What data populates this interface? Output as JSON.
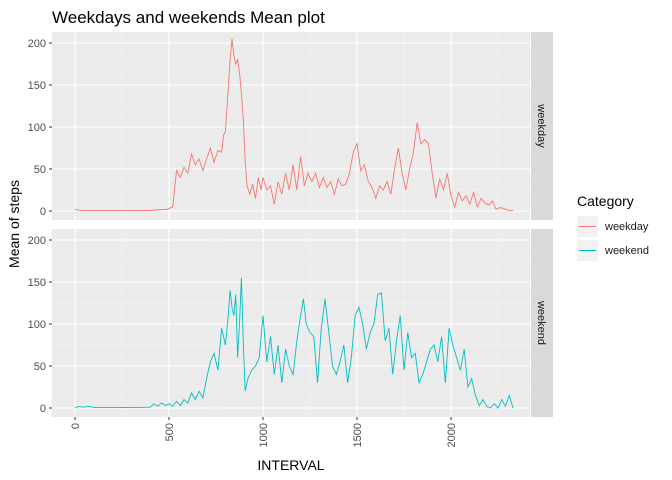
{
  "chart_data": {
    "type": "line",
    "title": "Weekdays and weekends Mean plot",
    "xlabel": "INTERVAL",
    "ylabel": "Mean of steps",
    "xlim": [
      0,
      2355
    ],
    "ylim": [
      0,
      210
    ],
    "x_ticks": [
      0,
      500,
      1000,
      1500,
      2000
    ],
    "x_tick_labels": [
      "0",
      "500",
      "1000",
      "1500",
      "2000"
    ],
    "y_ticks": [
      0,
      50,
      100,
      150,
      200
    ],
    "y_tick_labels": [
      "0",
      "50",
      "100",
      "150",
      "200"
    ],
    "grid": true,
    "facets": [
      "weekday",
      "weekend"
    ],
    "legend": {
      "title": "Category",
      "position": "right"
    },
    "series": [
      {
        "name": "weekday",
        "color": "#F8766D",
        "points": [
          [
            0,
            2
          ],
          [
            30,
            0.5
          ],
          [
            100,
            0.5
          ],
          [
            200,
            0.5
          ],
          [
            300,
            0.5
          ],
          [
            400,
            0.5
          ],
          [
            450,
            1.5
          ],
          [
            490,
            2
          ],
          [
            520,
            5
          ],
          [
            540,
            48
          ],
          [
            560,
            40
          ],
          [
            580,
            52
          ],
          [
            600,
            45
          ],
          [
            620,
            68
          ],
          [
            640,
            55
          ],
          [
            660,
            62
          ],
          [
            680,
            48
          ],
          [
            700,
            62
          ],
          [
            720,
            75
          ],
          [
            740,
            58
          ],
          [
            760,
            72
          ],
          [
            780,
            70
          ],
          [
            790,
            90
          ],
          [
            800,
            95
          ],
          [
            815,
            145
          ],
          [
            825,
            180
          ],
          [
            835,
            205
          ],
          [
            845,
            185
          ],
          [
            855,
            175
          ],
          [
            865,
            180
          ],
          [
            875,
            165
          ],
          [
            885,
            140
          ],
          [
            895,
            110
          ],
          [
            905,
            60
          ],
          [
            915,
            30
          ],
          [
            930,
            20
          ],
          [
            945,
            32
          ],
          [
            960,
            15
          ],
          [
            975,
            40
          ],
          [
            990,
            25
          ],
          [
            1000,
            40
          ],
          [
            1020,
            25
          ],
          [
            1040,
            30
          ],
          [
            1060,
            8
          ],
          [
            1080,
            35
          ],
          [
            1100,
            20
          ],
          [
            1120,
            45
          ],
          [
            1140,
            25
          ],
          [
            1160,
            55
          ],
          [
            1180,
            25
          ],
          [
            1200,
            65
          ],
          [
            1220,
            30
          ],
          [
            1240,
            45
          ],
          [
            1260,
            35
          ],
          [
            1280,
            45
          ],
          [
            1300,
            28
          ],
          [
            1320,
            40
          ],
          [
            1340,
            28
          ],
          [
            1360,
            35
          ],
          [
            1380,
            20
          ],
          [
            1400,
            38
          ],
          [
            1420,
            30
          ],
          [
            1440,
            32
          ],
          [
            1460,
            45
          ],
          [
            1480,
            70
          ],
          [
            1500,
            80
          ],
          [
            1520,
            48
          ],
          [
            1540,
            55
          ],
          [
            1560,
            35
          ],
          [
            1580,
            28
          ],
          [
            1600,
            15
          ],
          [
            1620,
            30
          ],
          [
            1640,
            25
          ],
          [
            1660,
            35
          ],
          [
            1680,
            20
          ],
          [
            1700,
            50
          ],
          [
            1720,
            75
          ],
          [
            1740,
            45
          ],
          [
            1760,
            25
          ],
          [
            1780,
            50
          ],
          [
            1800,
            70
          ],
          [
            1820,
            105
          ],
          [
            1840,
            80
          ],
          [
            1860,
            85
          ],
          [
            1880,
            80
          ],
          [
            1900,
            45
          ],
          [
            1920,
            15
          ],
          [
            1940,
            38
          ],
          [
            1960,
            25
          ],
          [
            1980,
            45
          ],
          [
            2000,
            18
          ],
          [
            2020,
            5
          ],
          [
            2040,
            22
          ],
          [
            2060,
            12
          ],
          [
            2080,
            18
          ],
          [
            2100,
            8
          ],
          [
            2120,
            22
          ],
          [
            2140,
            5
          ],
          [
            2160,
            15
          ],
          [
            2180,
            10
          ],
          [
            2200,
            7
          ],
          [
            2220,
            12
          ],
          [
            2240,
            2
          ],
          [
            2260,
            4
          ],
          [
            2280,
            3
          ],
          [
            2300,
            1
          ],
          [
            2330,
            0.5
          ]
        ]
      },
      {
        "name": "weekend",
        "color": "#00BFC4",
        "points": [
          [
            0,
            0
          ],
          [
            20,
            2
          ],
          [
            40,
            1
          ],
          [
            80,
            2
          ],
          [
            100,
            0.5
          ],
          [
            200,
            0.5
          ],
          [
            300,
            0.5
          ],
          [
            400,
            1
          ],
          [
            420,
            5
          ],
          [
            440,
            2
          ],
          [
            460,
            6
          ],
          [
            480,
            3
          ],
          [
            500,
            5
          ],
          [
            520,
            2
          ],
          [
            540,
            8
          ],
          [
            560,
            3
          ],
          [
            580,
            10
          ],
          [
            600,
            6
          ],
          [
            620,
            18
          ],
          [
            640,
            10
          ],
          [
            660,
            20
          ],
          [
            680,
            12
          ],
          [
            700,
            35
          ],
          [
            720,
            55
          ],
          [
            740,
            65
          ],
          [
            760,
            45
          ],
          [
            780,
            95
          ],
          [
            800,
            75
          ],
          [
            815,
            110
          ],
          [
            825,
            140
          ],
          [
            835,
            120
          ],
          [
            845,
            110
          ],
          [
            855,
            135
          ],
          [
            865,
            60
          ],
          [
            875,
            100
          ],
          [
            885,
            155
          ],
          [
            895,
            80
          ],
          [
            905,
            20
          ],
          [
            920,
            35
          ],
          [
            940,
            45
          ],
          [
            960,
            50
          ],
          [
            980,
            60
          ],
          [
            1000,
            110
          ],
          [
            1020,
            55
          ],
          [
            1040,
            85
          ],
          [
            1060,
            40
          ],
          [
            1080,
            75
          ],
          [
            1100,
            30
          ],
          [
            1120,
            70
          ],
          [
            1140,
            50
          ],
          [
            1160,
            40
          ],
          [
            1180,
            80
          ],
          [
            1200,
            110
          ],
          [
            1215,
            130
          ],
          [
            1230,
            100
          ],
          [
            1250,
            90
          ],
          [
            1270,
            85
          ],
          [
            1290,
            30
          ],
          [
            1310,
            95
          ],
          [
            1330,
            130
          ],
          [
            1350,
            90
          ],
          [
            1370,
            50
          ],
          [
            1390,
            40
          ],
          [
            1410,
            55
          ],
          [
            1430,
            75
          ],
          [
            1450,
            30
          ],
          [
            1470,
            60
          ],
          [
            1490,
            110
          ],
          [
            1510,
            120
          ],
          [
            1530,
            100
          ],
          [
            1550,
            70
          ],
          [
            1570,
            90
          ],
          [
            1590,
            100
          ],
          [
            1610,
            135
          ],
          [
            1630,
            137
          ],
          [
            1650,
            80
          ],
          [
            1670,
            95
          ],
          [
            1690,
            40
          ],
          [
            1710,
            80
          ],
          [
            1730,
            110
          ],
          [
            1750,
            45
          ],
          [
            1770,
            90
          ],
          [
            1790,
            60
          ],
          [
            1810,
            65
          ],
          [
            1830,
            30
          ],
          [
            1850,
            40
          ],
          [
            1870,
            55
          ],
          [
            1890,
            70
          ],
          [
            1910,
            75
          ],
          [
            1930,
            55
          ],
          [
            1950,
            85
          ],
          [
            1970,
            30
          ],
          [
            1990,
            95
          ],
          [
            2010,
            75
          ],
          [
            2030,
            60
          ],
          [
            2050,
            45
          ],
          [
            2070,
            70
          ],
          [
            2090,
            25
          ],
          [
            2110,
            35
          ],
          [
            2130,
            15
          ],
          [
            2150,
            3
          ],
          [
            2170,
            10
          ],
          [
            2190,
            2
          ],
          [
            2210,
            0
          ],
          [
            2230,
            5
          ],
          [
            2250,
            0
          ],
          [
            2270,
            10
          ],
          [
            2290,
            2
          ],
          [
            2310,
            15
          ],
          [
            2330,
            0
          ]
        ]
      }
    ]
  }
}
